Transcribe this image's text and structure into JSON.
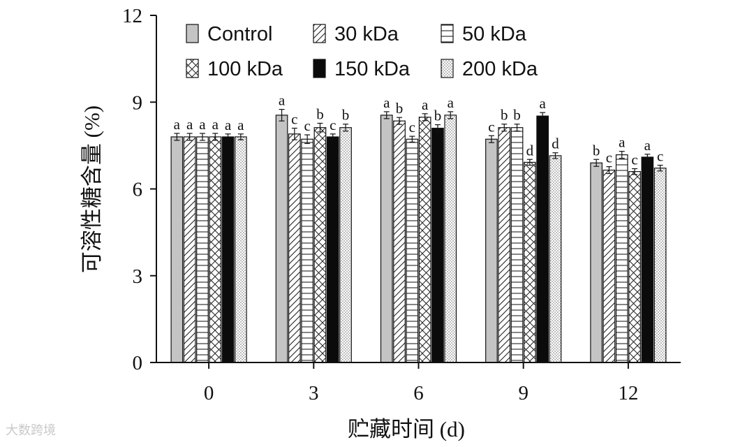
{
  "chart_data": {
    "type": "bar",
    "xlabel": "贮藏时间 (d)",
    "ylabel": "可溶性糖含量 (%)",
    "ylim": [
      0,
      12
    ],
    "yticks": [
      "0",
      "3",
      "6",
      "9",
      "12"
    ],
    "categories": [
      "0",
      "3",
      "6",
      "9",
      "12"
    ],
    "legend_position": "top",
    "series": [
      {
        "name": "Control",
        "pattern": "gray",
        "values": [
          7.8,
          8.55,
          8.55,
          7.72,
          6.9
        ],
        "errors": [
          0.12,
          0.2,
          0.12,
          0.12,
          0.12
        ],
        "labels": [
          "a",
          "a",
          "a",
          "c",
          "b"
        ]
      },
      {
        "name": "30 kDa",
        "pattern": "diagonal",
        "values": [
          7.8,
          7.9,
          8.35,
          8.12,
          6.65
        ],
        "errors": [
          0.12,
          0.2,
          0.12,
          0.12,
          0.12
        ],
        "labels": [
          "a",
          "c",
          "b",
          "b",
          "c"
        ]
      },
      {
        "name": "50 kDa",
        "pattern": "horizontal",
        "values": [
          7.8,
          7.72,
          7.72,
          8.12,
          7.18
        ],
        "errors": [
          0.12,
          0.15,
          0.1,
          0.12,
          0.12
        ],
        "labels": [
          "a",
          "c",
          "c",
          "b",
          "a"
        ]
      },
      {
        "name": "100 kDa",
        "pattern": "cross",
        "values": [
          7.8,
          8.12,
          8.48,
          6.92,
          6.6
        ],
        "errors": [
          0.12,
          0.15,
          0.12,
          0.1,
          0.1
        ],
        "labels": [
          "a",
          "b",
          "a",
          "d",
          "c"
        ]
      },
      {
        "name": "150 kDa",
        "pattern": "black",
        "values": [
          7.8,
          7.8,
          8.1,
          8.52,
          7.1
        ],
        "errors": [
          0.1,
          0.1,
          0.12,
          0.12,
          0.1
        ],
        "labels": [
          "a",
          "c",
          "b",
          "a",
          "a"
        ]
      },
      {
        "name": "200 kDa",
        "pattern": "dotted",
        "values": [
          7.8,
          8.12,
          8.55,
          7.15,
          6.72
        ],
        "errors": [
          0.1,
          0.12,
          0.12,
          0.1,
          0.1
        ],
        "labels": [
          "a",
          "b",
          "a",
          "d",
          "c"
        ]
      }
    ]
  },
  "watermark": "大数跨境",
  "colors": {
    "axis": "#111111",
    "gray_fill": "#c4c4c4",
    "black_fill": "#0b0b0b"
  }
}
